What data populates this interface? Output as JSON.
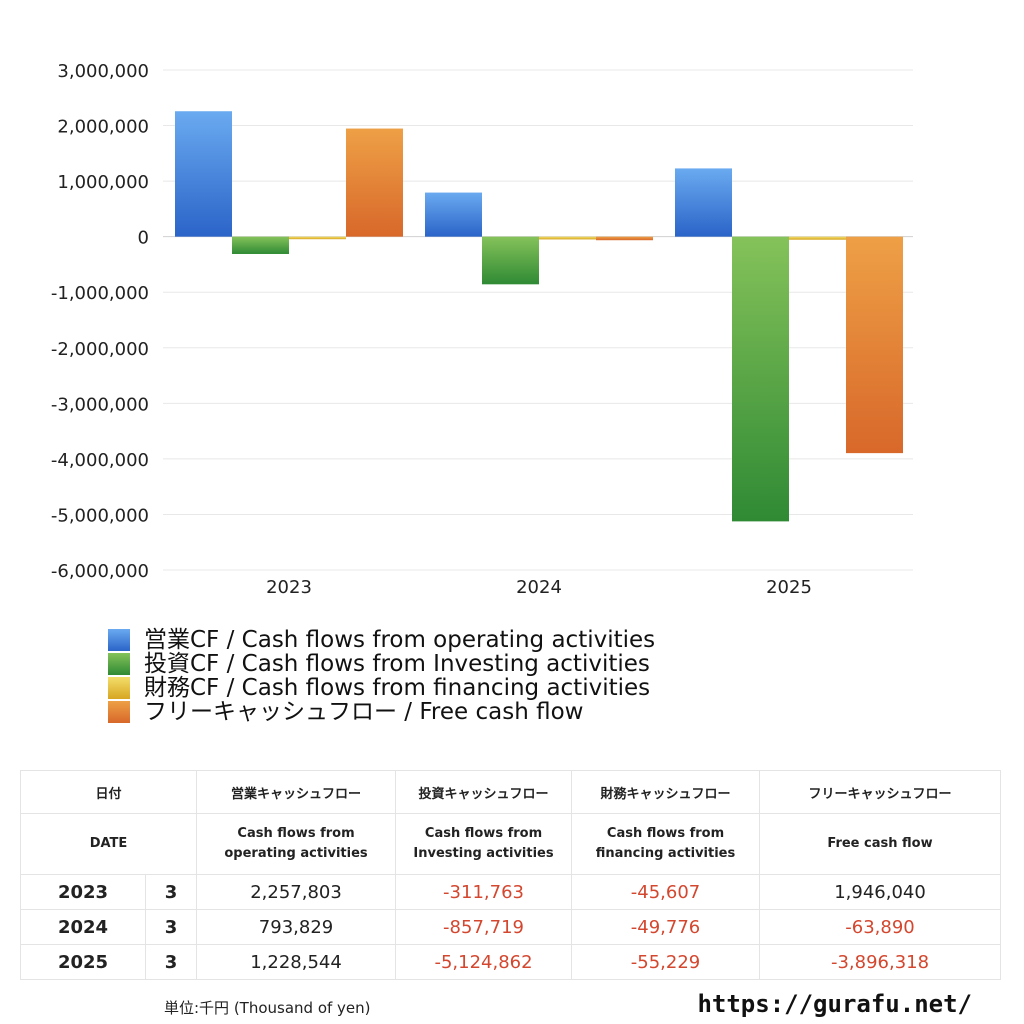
{
  "colors": {
    "operating": [
      "#6aaaf0",
      "#2b64c8"
    ],
    "investing": [
      "#85c25a",
      "#2f8a34"
    ],
    "financing": [
      "#f3de6a",
      "#d7a622"
    ],
    "free": [
      "#eea046",
      "#d8682a"
    ],
    "negative_text": "#d4472f"
  },
  "chart_data": {
    "type": "bar",
    "categories": [
      "2023",
      "2024",
      "2025"
    ],
    "series": [
      {
        "name": "営業CF / Cash flows from operating activities",
        "values": [
          2257803,
          793829,
          1228544
        ]
      },
      {
        "name": "投資CF / Cash flows from Investing activities",
        "values": [
          -311763,
          -857719,
          -5124862
        ]
      },
      {
        "name": "財務CF / Cash flows from financing activities",
        "values": [
          -45607,
          -49776,
          -55229
        ]
      },
      {
        "name": "フリーキャッシュフロー / Free cash flow",
        "values": [
          1946040,
          -63890,
          -3896318
        ]
      }
    ],
    "ylim": [
      -6000000,
      3000000
    ],
    "yticks": [
      3000000,
      2000000,
      1000000,
      0,
      -1000000,
      -2000000,
      -3000000,
      -4000000,
      -5000000,
      -6000000
    ],
    "ytick_labels": [
      "3,000,000",
      "2,000,000",
      "1,000,000",
      "0",
      "-1,000,000",
      "-2,000,000",
      "-3,000,000",
      "-4,000,000",
      "-5,000,000",
      "-6,000,000"
    ],
    "grid": true,
    "legend_position": "bottom-left"
  },
  "table": {
    "header_jp": [
      "日付",
      "営業キャッシュフロー",
      "投資キャッシュフロー",
      "財務キャッシュフロー",
      "フリーキャッシュフロー"
    ],
    "header_en": [
      "DATE",
      "Cash flows from\noperating activities",
      "Cash flows from\nInvesting activities",
      "Cash flows from\nfinancing activities",
      "Free cash flow"
    ],
    "rows": [
      {
        "year": "2023",
        "month": "3",
        "operating": "2,257,803",
        "investing": "-311,763",
        "financing": "-45,607",
        "free": "1,946,040"
      },
      {
        "year": "2024",
        "month": "3",
        "operating": "793,829",
        "investing": "-857,719",
        "financing": "-49,776",
        "free": "-63,890"
      },
      {
        "year": "2025",
        "month": "3",
        "operating": "1,228,544",
        "investing": "-5,124,862",
        "financing": "-55,229",
        "free": "-3,896,318"
      }
    ]
  },
  "footer": {
    "unit": "単位:千円 (Thousand of yen)",
    "site": "https://gurafu.net/"
  }
}
